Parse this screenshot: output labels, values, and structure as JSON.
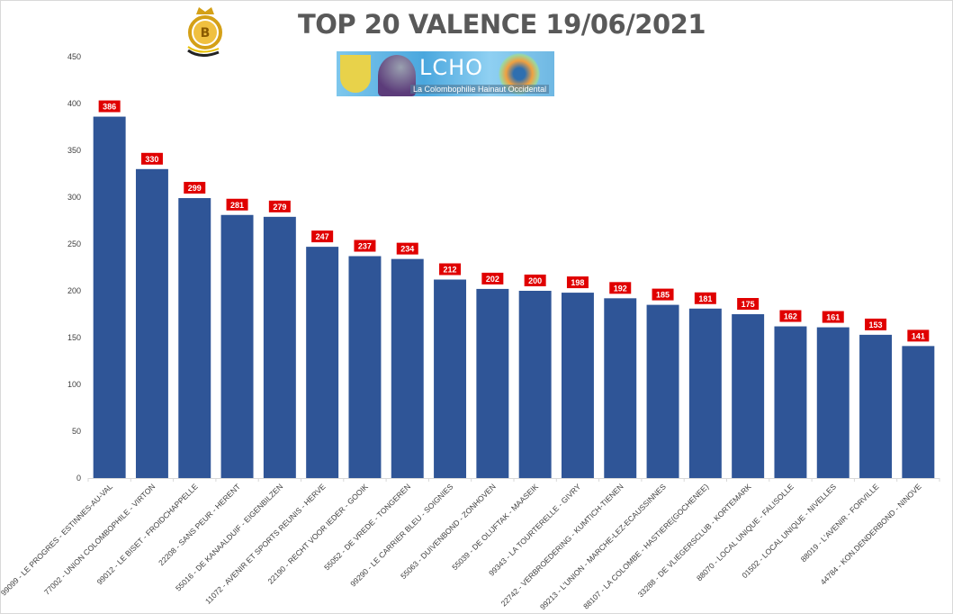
{
  "header": {
    "title": "TOP 20 VALENCE 19/06/2021",
    "logo_b_text": "B",
    "logo_lcho_name": "LCHO",
    "logo_lcho_subtitle": "La Colombophilie Hainaut Occidental"
  },
  "colors": {
    "bar": "#2f5597",
    "label_bg": "#e00000",
    "label_text": "#ffffff",
    "axis_text": "#404040",
    "gridline": "#d9d9d9",
    "title": "#595959"
  },
  "chart_data": {
    "type": "bar",
    "title": "TOP 20 VALENCE 19/06/2021",
    "xlabel": "",
    "ylabel": "",
    "ylim": [
      0,
      450
    ],
    "yticks": [
      0,
      50,
      100,
      150,
      200,
      250,
      300,
      350,
      400,
      450
    ],
    "grid": false,
    "categories": [
      "99099 - LE PROGRES - ESTINNES-AU-VAL",
      "77002 - UNION COLOMBOPHILE - VIRTON",
      "99012 - LE BISET - FROIDCHAPPELLE",
      "22208 - SANS PEUR - HERENT",
      "55016 - DE KANAALDUIF - EIGENBILZEN",
      "11072 - AVENIR ET SPORTS REUNIS - HERVE",
      "22190 - RECHT VOOR IEDER - GOOIK",
      "55052 - DE VREDE - TONGEREN",
      "99290 - LE CARRIER BLEU - SOIGNIES",
      "55063 - DUIVENBOND - ZONHOVEN",
      "55039 - DE OLIJFTAK - MAASEIK",
      "99343 - LA TOURTERELLE - GIVRY",
      "22742 - VERBROEDERING - KUMTICH-TIENEN",
      "99213 - L'UNION - MARCHE-LEZ-ECAUSSINNES",
      "88107 - LA COLOMBE - HASTIERE(GOCHENEE)",
      "33288 - DE VLIEGERSCLUB - KORTEMARK",
      "88070 - LOCAL UNIQUE - FALISOLLE",
      "01502 - LOCAL UNIQUE - NIVELLES",
      "88019 - L'AVENIR - FORVILLE",
      "44784 - KON.DENDERBOND - NINOVE"
    ],
    "values": [
      386,
      330,
      299,
      281,
      279,
      247,
      237,
      234,
      212,
      202,
      200,
      198,
      192,
      185,
      181,
      175,
      162,
      161,
      153,
      141
    ],
    "data_labels": true
  }
}
